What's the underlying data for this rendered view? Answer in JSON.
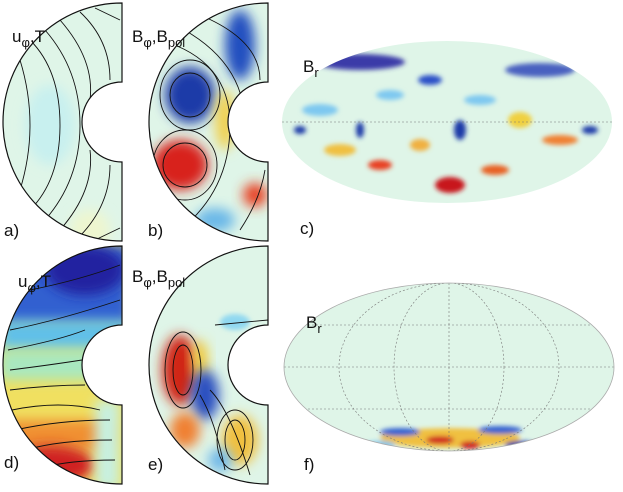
{
  "panels": [
    {
      "label": "a)",
      "title": [
        {
          "text": "u"
        },
        {
          "text": "φ",
          "sub": true
        },
        {
          "text": ",T"
        }
      ]
    },
    {
      "label": "b)",
      "title": [
        {
          "text": "B"
        },
        {
          "text": "φ",
          "sub": true
        },
        {
          "text": ",B"
        },
        {
          "text": "pol",
          "sub": true
        }
      ]
    },
    {
      "label": "c)",
      "title": [
        {
          "text": "B"
        },
        {
          "text": "r",
          "sub": true
        }
      ]
    },
    {
      "label": "d)",
      "title": [
        {
          "text": "u"
        },
        {
          "text": "φ",
          "sub": true
        },
        {
          "text": ",T"
        }
      ]
    },
    {
      "label": "e)",
      "title": [
        {
          "text": "B"
        },
        {
          "text": "φ",
          "sub": true
        },
        {
          "text": ",B"
        },
        {
          "text": "pol",
          "sub": true
        }
      ]
    },
    {
      "label": "f)",
      "title": [
        {
          "text": "B"
        },
        {
          "text": "r",
          "sub": true
        }
      ]
    }
  ]
}
